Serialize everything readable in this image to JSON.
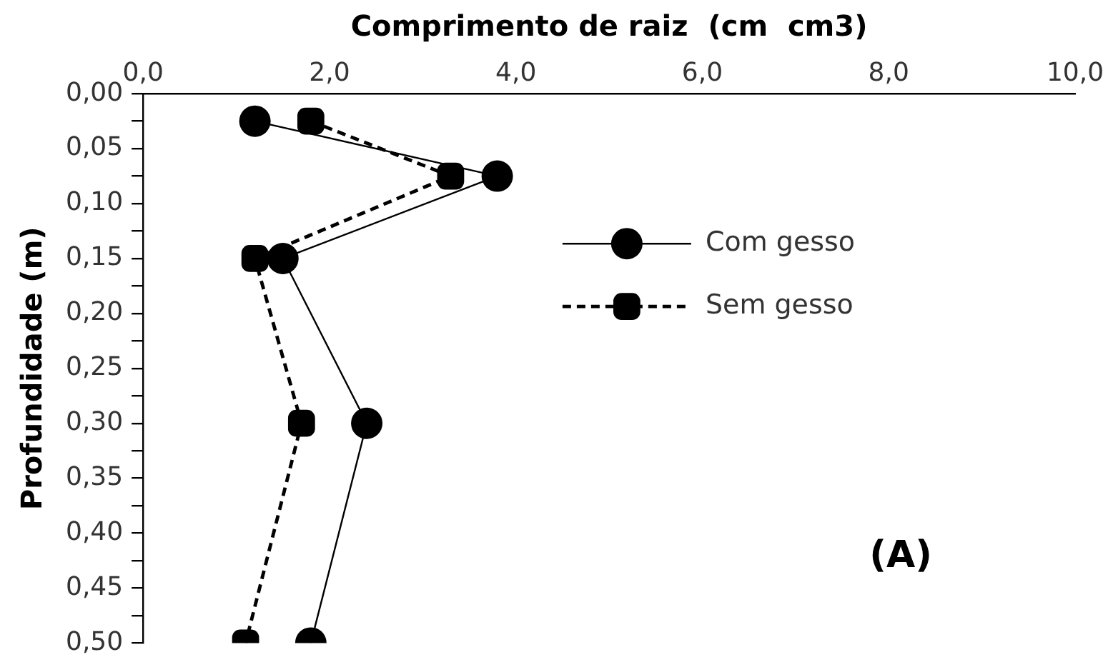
{
  "chart_data": {
    "type": "line",
    "xlabel": "Comprimento de raiz  (cm  cm3)",
    "ylabel": "Profundidade (m)",
    "xlim": [
      0,
      10
    ],
    "xticks": [
      {
        "value": 0,
        "label": "0,0"
      },
      {
        "value": 2,
        "label": "2,0"
      },
      {
        "value": 4,
        "label": "4,0"
      },
      {
        "value": 6,
        "label": "6,0"
      },
      {
        "value": 8,
        "label": "8,0"
      },
      {
        "value": 10,
        "label": "10,0"
      }
    ],
    "ylim": [
      0.5,
      0
    ],
    "yticks": [
      {
        "value": 0,
        "label": "0,00"
      },
      {
        "value": 0.025,
        "label": null
      },
      {
        "value": 0.05,
        "label": "0,05"
      },
      {
        "value": 0.075,
        "label": null
      },
      {
        "value": 0.1,
        "label": "0,10"
      },
      {
        "value": 0.125,
        "label": null
      },
      {
        "value": 0.15,
        "label": "0,15"
      },
      {
        "value": 0.175,
        "label": null
      },
      {
        "value": 0.2,
        "label": "0,20"
      },
      {
        "value": 0.225,
        "label": null
      },
      {
        "value": 0.25,
        "label": "0,25"
      },
      {
        "value": 0.275,
        "label": null
      },
      {
        "value": 0.3,
        "label": "0,30"
      },
      {
        "value": 0.325,
        "label": null
      },
      {
        "value": 0.35,
        "label": "0,35"
      },
      {
        "value": 0.375,
        "label": null
      },
      {
        "value": 0.4,
        "label": "0,40"
      },
      {
        "value": 0.425,
        "label": null
      },
      {
        "value": 0.45,
        "label": "0,45"
      },
      {
        "value": 0.475,
        "label": null
      },
      {
        "value": 0.5,
        "label": "0,50"
      }
    ],
    "series": [
      {
        "name": "Com gesso",
        "color": "#000000",
        "marker": "circle",
        "line_style": "solid",
        "x": [
          1.2,
          3.8,
          1.5,
          2.4,
          1.8
        ],
        "values": [
          0.025,
          0.075,
          0.15,
          0.3,
          0.5
        ]
      },
      {
        "name": "Sem gesso",
        "color": "#000000",
        "marker": "square",
        "line_style": "dashed",
        "x": [
          1.8,
          3.3,
          1.2,
          1.7,
          1.1
        ],
        "values": [
          0.025,
          0.075,
          0.15,
          0.3,
          0.5
        ]
      }
    ],
    "grid": false,
    "legend": "top right",
    "annotations": [
      "(A)"
    ]
  }
}
